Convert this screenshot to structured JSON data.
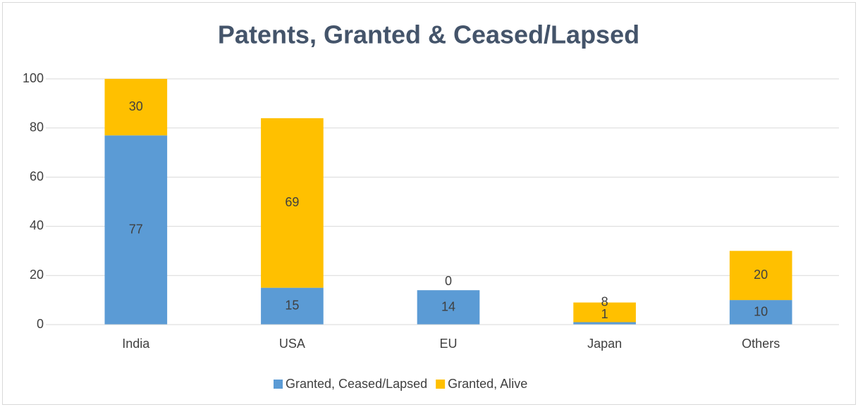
{
  "chart_data": {
    "type": "stacked_bar",
    "title": "Patents, Granted & Ceased/Lapsed",
    "categories": [
      "India",
      "USA",
      "EU",
      "Japan",
      "Others"
    ],
    "series": [
      {
        "name": "Granted, Ceased/Lapsed",
        "color": "#5b9bd5",
        "values": [
          77,
          15,
          14,
          1,
          10
        ]
      },
      {
        "name": "Granted, Alive",
        "color": "#ffc000",
        "values": [
          30,
          69,
          0,
          8,
          20
        ]
      }
    ],
    "ylim": [
      0,
      100
    ],
    "yticks": [
      0,
      20,
      40,
      60,
      80,
      100
    ],
    "grid": true,
    "legend": "bottom"
  }
}
